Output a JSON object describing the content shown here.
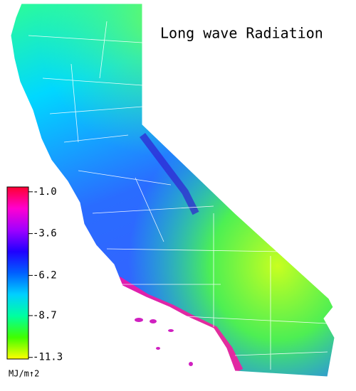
{
  "title": "Long wave Radiation",
  "colorbar": {
    "label": "MJ/m↑2",
    "lim": [
      -0.7,
      -11.4
    ],
    "ticks": [
      {
        "value": -1.0,
        "label": "-1.0"
      },
      {
        "value": -3.6,
        "label": "-3.6"
      },
      {
        "value": -6.2,
        "label": "-6.2"
      },
      {
        "value": -8.7,
        "label": "-8.7"
      },
      {
        "value": -11.3,
        "label": "-11.3"
      }
    ],
    "colors": [
      "#ff0030",
      "#ff00d0",
      "#a000ff",
      "#2000ff",
      "#0060ff",
      "#00d0ff",
      "#00ffa0",
      "#40ff00",
      "#ffff00"
    ]
  }
}
